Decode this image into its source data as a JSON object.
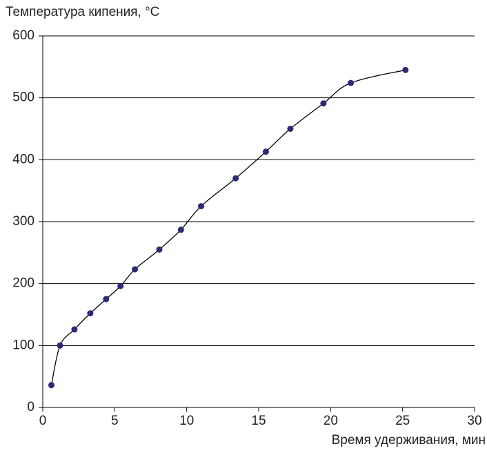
{
  "chart_data": {
    "type": "scatter",
    "y_label": "Температура кипения, °C",
    "x_label": "Время удерживания, мин",
    "x": [
      0.6,
      1.2,
      2.2,
      3.3,
      4.4,
      5.4,
      6.4,
      8.1,
      9.6,
      11.0,
      13.4,
      15.5,
      17.2,
      19.5,
      21.4,
      25.2
    ],
    "series": [
      {
        "color": "#2a2a78",
        "line_color": "#000000",
        "values": [
          36,
          100,
          126,
          152,
          175,
          196,
          223,
          255,
          287,
          325,
          370,
          413,
          450,
          491,
          524,
          545
        ]
      }
    ],
    "xlim": [
      0,
      30
    ],
    "xticks": [
      0,
      5,
      10,
      15,
      20,
      25,
      30
    ],
    "ylim": [
      0,
      600
    ],
    "yticks": [
      0,
      100,
      200,
      300,
      400,
      500,
      600
    ],
    "grid": true
  }
}
